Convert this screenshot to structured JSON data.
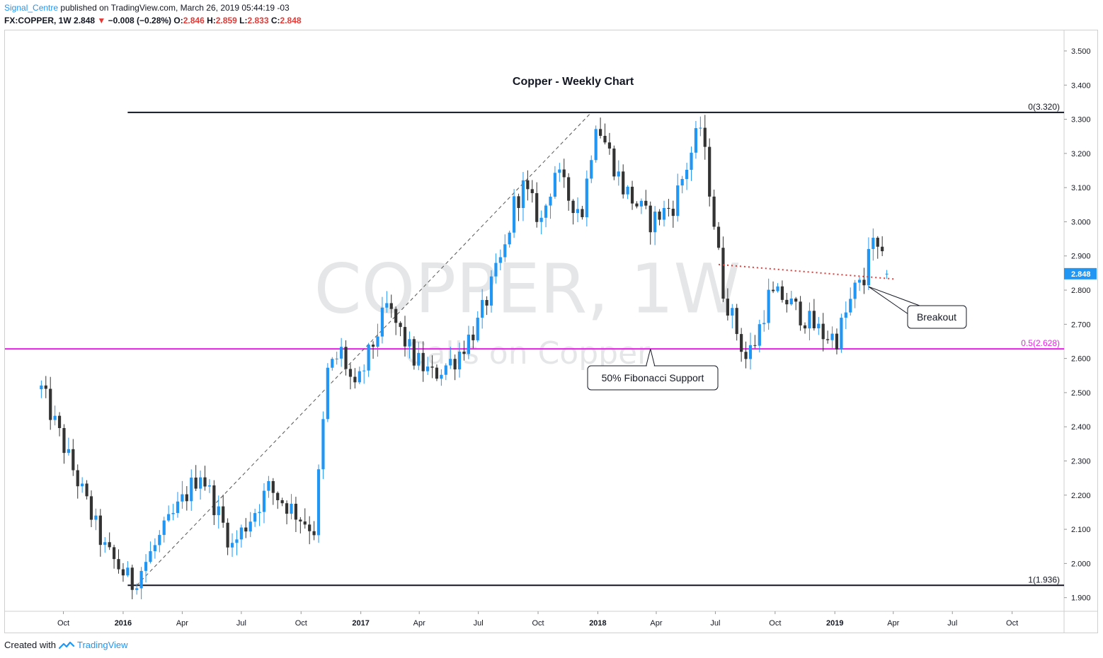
{
  "header": {
    "author": "Signal_Centre",
    "published": "published on TradingView.com, March 26, 2019 05:44:19 -03",
    "symbol": "FX:COPPER, 1W",
    "last": "2.848",
    "change": "−0.008 (−0.28%)",
    "o_label": "O:",
    "o_value": "2.846",
    "h_label": "H:",
    "h_value": "2.859",
    "l_label": "L:",
    "l_value": "2.833",
    "c_label": "C:",
    "c_value": "2.848"
  },
  "footer": {
    "created_with": "Created with",
    "brand": "TradingView"
  },
  "colors": {
    "up": "#2196f3",
    "down": "#333333",
    "fib_mid": "#e91ee9",
    "trend": "#e53935",
    "price_tag": "#2196f3"
  },
  "chart_data": {
    "type": "candlestick",
    "title": "Copper - Weekly Chart",
    "watermark": "COPPER, 1W",
    "watermark_sub": "Calls on Copper",
    "ylim": [
      1.86,
      3.56
    ],
    "y_ticks": [
      "3.500",
      "3.400",
      "3.300",
      "3.200",
      "3.100",
      "3.000",
      "2.900",
      "2.800",
      "2.700",
      "2.600",
      "2.500",
      "2.400",
      "2.300",
      "2.200",
      "2.100",
      "2.000",
      "1.900"
    ],
    "x_ticks": [
      {
        "label": "Oct",
        "date": "2015-10"
      },
      {
        "label": "2016",
        "date": "2016-01",
        "bold": true
      },
      {
        "label": "Apr",
        "date": "2016-04"
      },
      {
        "label": "Jul",
        "date": "2016-07"
      },
      {
        "label": "Oct",
        "date": "2016-10"
      },
      {
        "label": "2017",
        "date": "2017-01",
        "bold": true
      },
      {
        "label": "Apr",
        "date": "2017-04"
      },
      {
        "label": "Jul",
        "date": "2017-07"
      },
      {
        "label": "Oct",
        "date": "2017-10"
      },
      {
        "label": "2018",
        "date": "2018-01",
        "bold": true
      },
      {
        "label": "Apr",
        "date": "2018-04"
      },
      {
        "label": "Jul",
        "date": "2018-07"
      },
      {
        "label": "Oct",
        "date": "2018-10"
      },
      {
        "label": "2019",
        "date": "2019-01",
        "bold": true
      },
      {
        "label": "Apr",
        "date": "2019-04"
      },
      {
        "label": "Jul",
        "date": "2019-07"
      },
      {
        "label": "Oct",
        "date": "2019-10"
      }
    ],
    "fib_levels": [
      {
        "label": "0(3.320)",
        "value": 3.32
      },
      {
        "label": "0.5(2.628)",
        "value": 2.628
      },
      {
        "label": "1(1.936)",
        "value": 1.936
      }
    ],
    "last_price": {
      "label": "2.848",
      "value": 2.848
    },
    "annotations": [
      {
        "text": "50% Fibonacci Support",
        "anchor_value": 2.628
      },
      {
        "text": "Breakout",
        "anchor_value": 2.81
      }
    ],
    "trendline": {
      "from": {
        "date": "2018-07-06",
        "value": 2.875
      },
      "to": {
        "date": "2019-04-05",
        "value": 2.832
      }
    },
    "dashed_line": {
      "from": {
        "date": "2016-01-22",
        "value": 1.936
      },
      "to": {
        "date": "2017-12-22",
        "value": 3.32
      }
    },
    "anchors": [
      {
        "date": "2015-08-28",
        "value": 2.51
      },
      {
        "date": "2015-12-04",
        "value": 2.04
      },
      {
        "date": "2016-01-15",
        "value": 1.94
      },
      {
        "date": "2016-04-29",
        "value": 2.27
      },
      {
        "date": "2016-06-17",
        "value": 2.05
      },
      {
        "date": "2016-08-12",
        "value": 2.22
      },
      {
        "date": "2016-10-21",
        "value": 2.1
      },
      {
        "date": "2016-11-11",
        "value": 2.56
      },
      {
        "date": "2016-12-02",
        "value": 2.62
      },
      {
        "date": "2016-12-23",
        "value": 2.5
      },
      {
        "date": "2017-02-10",
        "value": 2.75
      },
      {
        "date": "2017-03-24",
        "value": 2.6
      },
      {
        "date": "2017-04-21",
        "value": 2.55
      },
      {
        "date": "2017-05-26",
        "value": 2.6
      },
      {
        "date": "2017-06-30",
        "value": 2.7
      },
      {
        "date": "2017-08-11",
        "value": 2.92
      },
      {
        "date": "2017-08-25",
        "value": 3.05
      },
      {
        "date": "2017-09-08",
        "value": 3.1
      },
      {
        "date": "2017-10-06",
        "value": 3.0
      },
      {
        "date": "2017-10-27",
        "value": 3.15
      },
      {
        "date": "2017-11-17",
        "value": 3.07
      },
      {
        "date": "2017-12-08",
        "value": 3.03
      },
      {
        "date": "2017-12-29",
        "value": 3.3
      },
      {
        "date": "2018-02-09",
        "value": 3.1
      },
      {
        "date": "2018-03-23",
        "value": 3.0
      },
      {
        "date": "2018-04-27",
        "value": 3.05
      },
      {
        "date": "2018-06-08",
        "value": 3.28
      },
      {
        "date": "2018-06-22",
        "value": 3.1
      },
      {
        "date": "2018-07-13",
        "value": 2.8
      },
      {
        "date": "2018-08-17",
        "value": 2.6
      },
      {
        "date": "2018-08-31",
        "value": 2.65
      },
      {
        "date": "2018-09-21",
        "value": 2.78
      },
      {
        "date": "2018-10-12",
        "value": 2.78
      },
      {
        "date": "2018-11-09",
        "value": 2.73
      },
      {
        "date": "2018-12-14",
        "value": 2.67
      },
      {
        "date": "2019-01-04",
        "value": 2.66
      },
      {
        "date": "2019-02-01",
        "value": 2.8
      },
      {
        "date": "2019-02-15",
        "value": 2.82
      },
      {
        "date": "2019-02-22",
        "value": 2.94
      },
      {
        "date": "2019-03-08",
        "value": 2.91
      },
      {
        "date": "2019-03-22",
        "value": 2.848
      }
    ]
  }
}
